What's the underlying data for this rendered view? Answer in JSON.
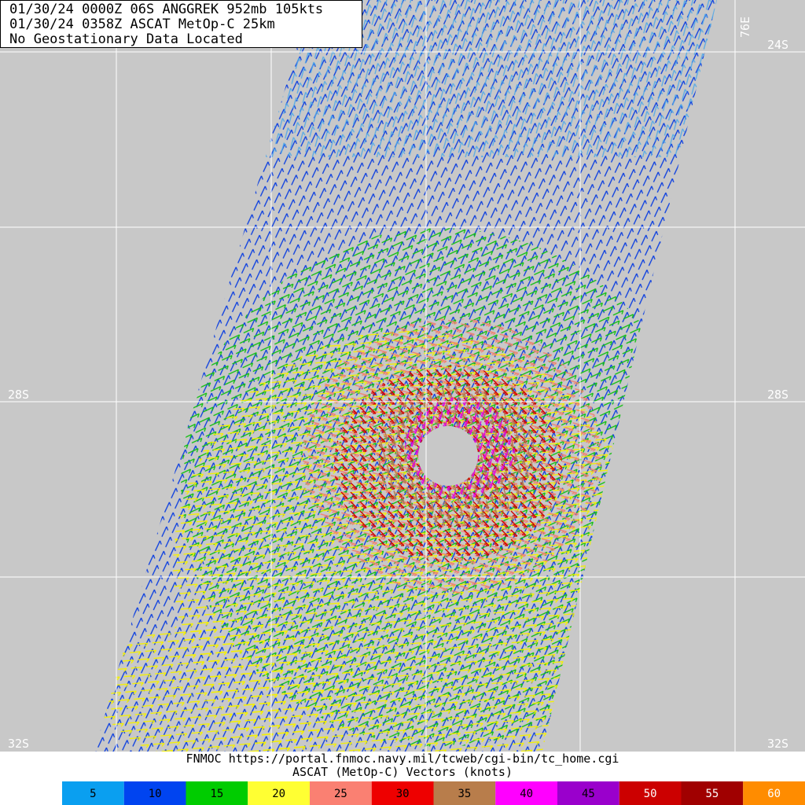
{
  "header": {
    "lines": [
      "01/30/24 0000Z  06S ANGGREK 952mb 105kts",
      "01/30/24 0358Z  ASCAT MetOp-C 25km",
      "No Geostationary Data Located"
    ]
  },
  "map_labels": {
    "lon_top": "76E",
    "lat": [
      {
        "label": "24S"
      },
      {
        "label": "28S"
      },
      {
        "label": "32S"
      }
    ]
  },
  "footer": {
    "source": "FNMOC https://portal.fnmoc.navy.mil/tcweb/cgi-bin/tc_home.cgi",
    "caption": "ASCAT (MetOp-C) Vectors (knots)"
  },
  "legend": [
    {
      "value": 5,
      "color": "#0a9ff0"
    },
    {
      "value": 10,
      "color": "#0044f0"
    },
    {
      "value": 15,
      "color": "#00cc00"
    },
    {
      "value": 20,
      "color": "#ffff33"
    },
    {
      "value": 25,
      "color": "#fa8072"
    },
    {
      "value": 30,
      "color": "#ee0000"
    },
    {
      "value": 35,
      "color": "#b87d4b"
    },
    {
      "value": 40,
      "color": "#ff00ff"
    },
    {
      "value": 45,
      "color": "#9a00cc"
    },
    {
      "value": 50,
      "color": "#cc0000"
    },
    {
      "value": 55,
      "color": "#a00000"
    },
    {
      "value": 60,
      "color": "#ff8c00"
    }
  ]
}
